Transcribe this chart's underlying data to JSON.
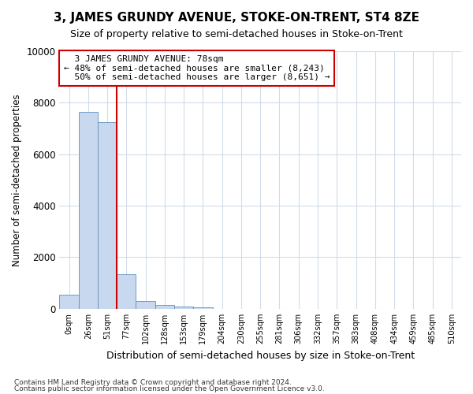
{
  "title": "3, JAMES GRUNDY AVENUE, STOKE-ON-TRENT, ST4 8ZE",
  "subtitle": "Size of property relative to semi-detached houses in Stoke-on-Trent",
  "xlabel": "Distribution of semi-detached houses by size in Stoke-on-Trent",
  "ylabel": "Number of semi-detached properties",
  "footnote1": "Contains HM Land Registry data © Crown copyright and database right 2024.",
  "footnote2": "Contains public sector information licensed under the Open Government Licence v3.0.",
  "bar_labels": [
    "0sqm",
    "26sqm",
    "51sqm",
    "77sqm",
    "102sqm",
    "128sqm",
    "153sqm",
    "179sqm",
    "204sqm",
    "230sqm",
    "255sqm",
    "281sqm",
    "306sqm",
    "332sqm",
    "357sqm",
    "383sqm",
    "408sqm",
    "434sqm",
    "459sqm",
    "485sqm",
    "510sqm"
  ],
  "bar_values": [
    550,
    7650,
    7250,
    1350,
    300,
    155,
    100,
    65,
    0,
    0,
    0,
    0,
    0,
    0,
    0,
    0,
    0,
    0,
    0,
    0,
    0
  ],
  "bar_color": "#c8d8ee",
  "bar_edge_color": "#6090c0",
  "ylim": [
    0,
    10000
  ],
  "property_label": "3 JAMES GRUNDY AVENUE: 78sqm",
  "pct_smaller": 48,
  "count_smaller": 8243,
  "pct_larger": 50,
  "count_larger": 8651,
  "vline_color": "#cc0000",
  "annotation_box_color": "#cc0000",
  "background_color": "#ffffff",
  "grid_color": "#d0dce8"
}
